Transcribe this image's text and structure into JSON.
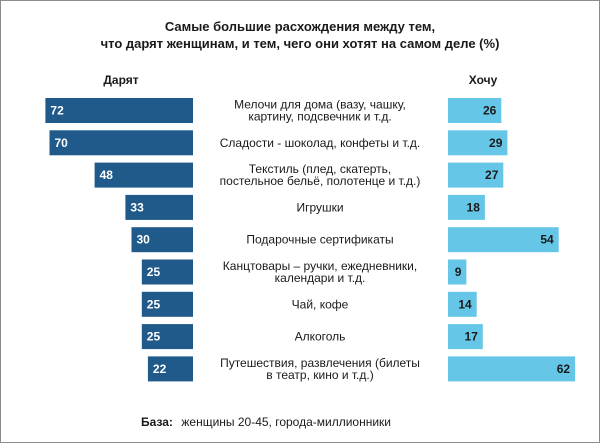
{
  "colors": {
    "give_bar": "#1f5a8a",
    "want_bar": "#66c6e8",
    "frame": "#8c8c8c"
  },
  "chart_data": {
    "type": "bar",
    "title_lines": [
      "Самые большие расхождения между тем,",
      "что дарят женщинам, и тем, чего они хотят на самом деле (%)"
    ],
    "left_header": "Дарят",
    "right_header": "Хочу",
    "categories": [
      [
        "Мелочи для дома (вазу, чашку,",
        "картину, подсвечник и т.д."
      ],
      [
        "Сладости - шоколад, конфеты и т.д."
      ],
      [
        "Текстиль (плед, скатерть,",
        "постельное бельё, полотенце и т.д.)"
      ],
      [
        "Игрушки"
      ],
      [
        "Подарочные сертификаты"
      ],
      [
        "Канцтовары – ручки, ежедневники,",
        "календари и т.д."
      ],
      [
        "Чай, кофе"
      ],
      [
        "Алкоголь"
      ],
      [
        "Путешествия, развлечения (билеты",
        "в театр, кино и т.д.)"
      ]
    ],
    "series": [
      {
        "name": "Дарят",
        "values": [
          72,
          70,
          48,
          33,
          30,
          25,
          25,
          25,
          22
        ]
      },
      {
        "name": "Хочу",
        "values": [
          26,
          29,
          27,
          18,
          54,
          9,
          14,
          17,
          62
        ]
      }
    ],
    "xlim": [
      0,
      75
    ],
    "footnote_label": "База:",
    "footnote_text": "женщины 20-45, города-миллионники"
  }
}
